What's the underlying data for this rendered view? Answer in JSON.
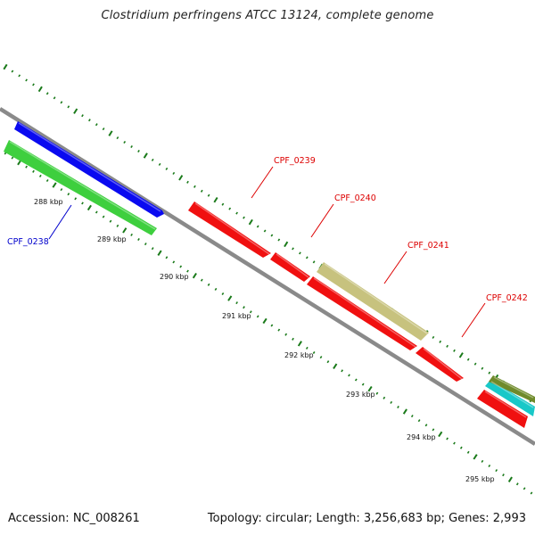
{
  "title": "Clostridium perfringens ATCC 13124, complete genome",
  "footer": {
    "accession": "Accession: NC_008261",
    "summary": "Topology: circular; Length: 3,256,683 bp; Genes: 2,993"
  },
  "ticks": [
    "288 kbp",
    "289 kbp",
    "290 kbp",
    "291 kbp",
    "292 kbp",
    "293 kbp",
    "294 kbp",
    "295 kbp"
  ],
  "genes": [
    {
      "name": "CPF_0238",
      "color": "#0000cc"
    },
    {
      "name": "CPF_0239",
      "color": "#dd0000"
    },
    {
      "name": "CPF_0240",
      "color": "#dd0000"
    },
    {
      "name": "CPF_0241",
      "color": "#dd0000"
    },
    {
      "name": "CPF_0242",
      "color": "#dd0000"
    }
  ],
  "colors": {
    "backbone": "#8a8a8a",
    "tick": "#1a7a1a",
    "cds_blue": "#0a0af0",
    "cds_green": "#3ecf3e",
    "cds_red": "#f01010",
    "cds_olive": "#c7c27e",
    "cds_darkolive": "#6f8a2a",
    "cds_cyan": "#18c8c8",
    "label_red": "#dd0000",
    "label_blue": "#0000cc"
  }
}
